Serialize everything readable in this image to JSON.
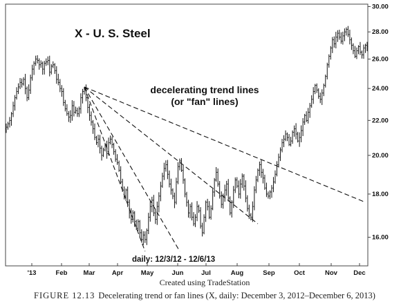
{
  "chart_data": {
    "type": "bar",
    "subtype": "ohlc",
    "title": "X - U. S. Steel",
    "annotation": "decelerating trend lines\n(or \"fan\" lines)",
    "date_range_label": "daily: 12/3/12 - 12/6/13",
    "credit": "Created using TradeStation",
    "caption_label": "FIGURE 12.13",
    "caption_text": "Decelerating trend or fan lines (X, daily: December 3, 2012–December 6, 2013)",
    "x_tick_labels": [
      "'13",
      "Feb",
      "Mar",
      "Apr",
      "May",
      "Jun",
      "Jul",
      "Aug",
      "Sep",
      "Oct",
      "Nov",
      "Dec"
    ],
    "y_tick_labels": [
      "30.00",
      "28.00",
      "26.00",
      "24.00",
      "22.00",
      "20.00",
      "18.00",
      "16.00"
    ],
    "y_ticks": [
      30,
      28,
      26,
      24,
      22,
      20,
      18,
      16
    ],
    "yscale": "log",
    "ylim": [
      14.8,
      30.2
    ],
    "grid": false,
    "series": [
      {
        "closes": [
          21.6,
          21.8,
          22.0,
          22.4,
          22.9,
          23.4,
          23.8,
          24.1,
          24.4,
          24.3,
          24.6,
          24.0,
          23.4,
          23.9,
          24.7,
          25.3,
          25.7,
          26.0,
          25.9,
          25.6,
          25.7,
          25.3,
          25.7,
          25.8,
          25.9,
          25.1,
          25.5,
          25.6,
          25.2,
          24.6,
          24.4,
          24.0,
          23.8,
          23.1,
          22.7,
          22.4,
          22.2,
          22.3,
          22.9,
          22.5,
          22.6,
          22.4,
          22.7,
          23.4,
          23.8,
          24.0,
          23.4,
          22.8,
          22.3,
          21.9,
          21.5,
          21.0,
          20.7,
          20.9,
          20.4,
          20.0,
          20.3,
          20.6,
          20.1,
          20.7,
          20.9,
          20.6,
          20.2,
          19.8,
          19.6,
          19.2,
          18.6,
          18.2,
          17.9,
          18.2,
          17.6,
          17.1,
          16.8,
          17.1,
          16.7,
          16.4,
          16.7,
          16.2,
          15.9,
          16.1,
          15.9,
          16.3,
          16.9,
          17.4,
          17.7,
          17.1,
          16.8,
          17.4,
          17.9,
          18.4,
          18.9,
          19.3,
          19.5,
          19.0,
          18.5,
          18.2,
          17.9,
          17.6,
          18.6,
          19.4,
          19.7,
          19.2,
          18.7,
          18.0,
          17.6,
          17.1,
          17.4,
          16.9,
          16.6,
          16.9,
          17.4,
          17.2,
          16.5,
          16.2,
          16.9,
          17.6,
          17.4,
          16.9,
          17.3,
          18.1,
          18.7,
          19.1,
          18.5,
          17.9,
          17.5,
          17.9,
          18.2,
          18.5,
          17.8,
          17.1,
          17.6,
          18.2,
          18.7,
          18.4,
          18.0,
          18.5,
          18.9,
          18.4,
          17.8,
          17.3,
          17.0,
          16.9,
          17.4,
          18.2,
          18.7,
          19.2,
          19.5,
          19.1,
          18.8,
          18.3,
          18.0,
          17.9,
          18.1,
          18.3,
          18.6,
          19.0,
          19.5,
          19.9,
          20.3,
          20.7,
          20.9,
          21.2,
          21.0,
          20.6,
          20.8,
          21.3,
          21.5,
          21.2,
          20.8,
          21.0,
          21.4,
          21.9,
          22.3,
          22.0,
          22.5,
          22.9,
          23.3,
          23.8,
          24.2,
          23.9,
          23.5,
          23.3,
          23.7,
          24.2,
          24.8,
          25.6,
          26.2,
          26.8,
          27.4,
          27.1,
          27.6,
          27.9,
          27.6,
          27.3,
          27.7,
          28.0,
          28.2,
          27.8,
          27.4,
          27.0,
          26.6,
          26.2,
          26.6,
          26.9,
          26.5,
          26.3,
          26.8,
          27.0,
          26.9
        ]
      }
    ],
    "fan_lines": [
      {
        "from_bar": 45,
        "from_price": 24.1,
        "to_bar": 207,
        "to_price": 17.6
      },
      {
        "from_bar": 45,
        "from_price": 24.1,
        "to_bar": 145,
        "to_price": 16.6
      },
      {
        "from_bar": 45,
        "from_price": 24.1,
        "to_bar": 100,
        "to_price": 15.4
      },
      {
        "from_bar": 45,
        "from_price": 24.1,
        "to_bar": 80,
        "to_price": 15.4
      }
    ]
  }
}
